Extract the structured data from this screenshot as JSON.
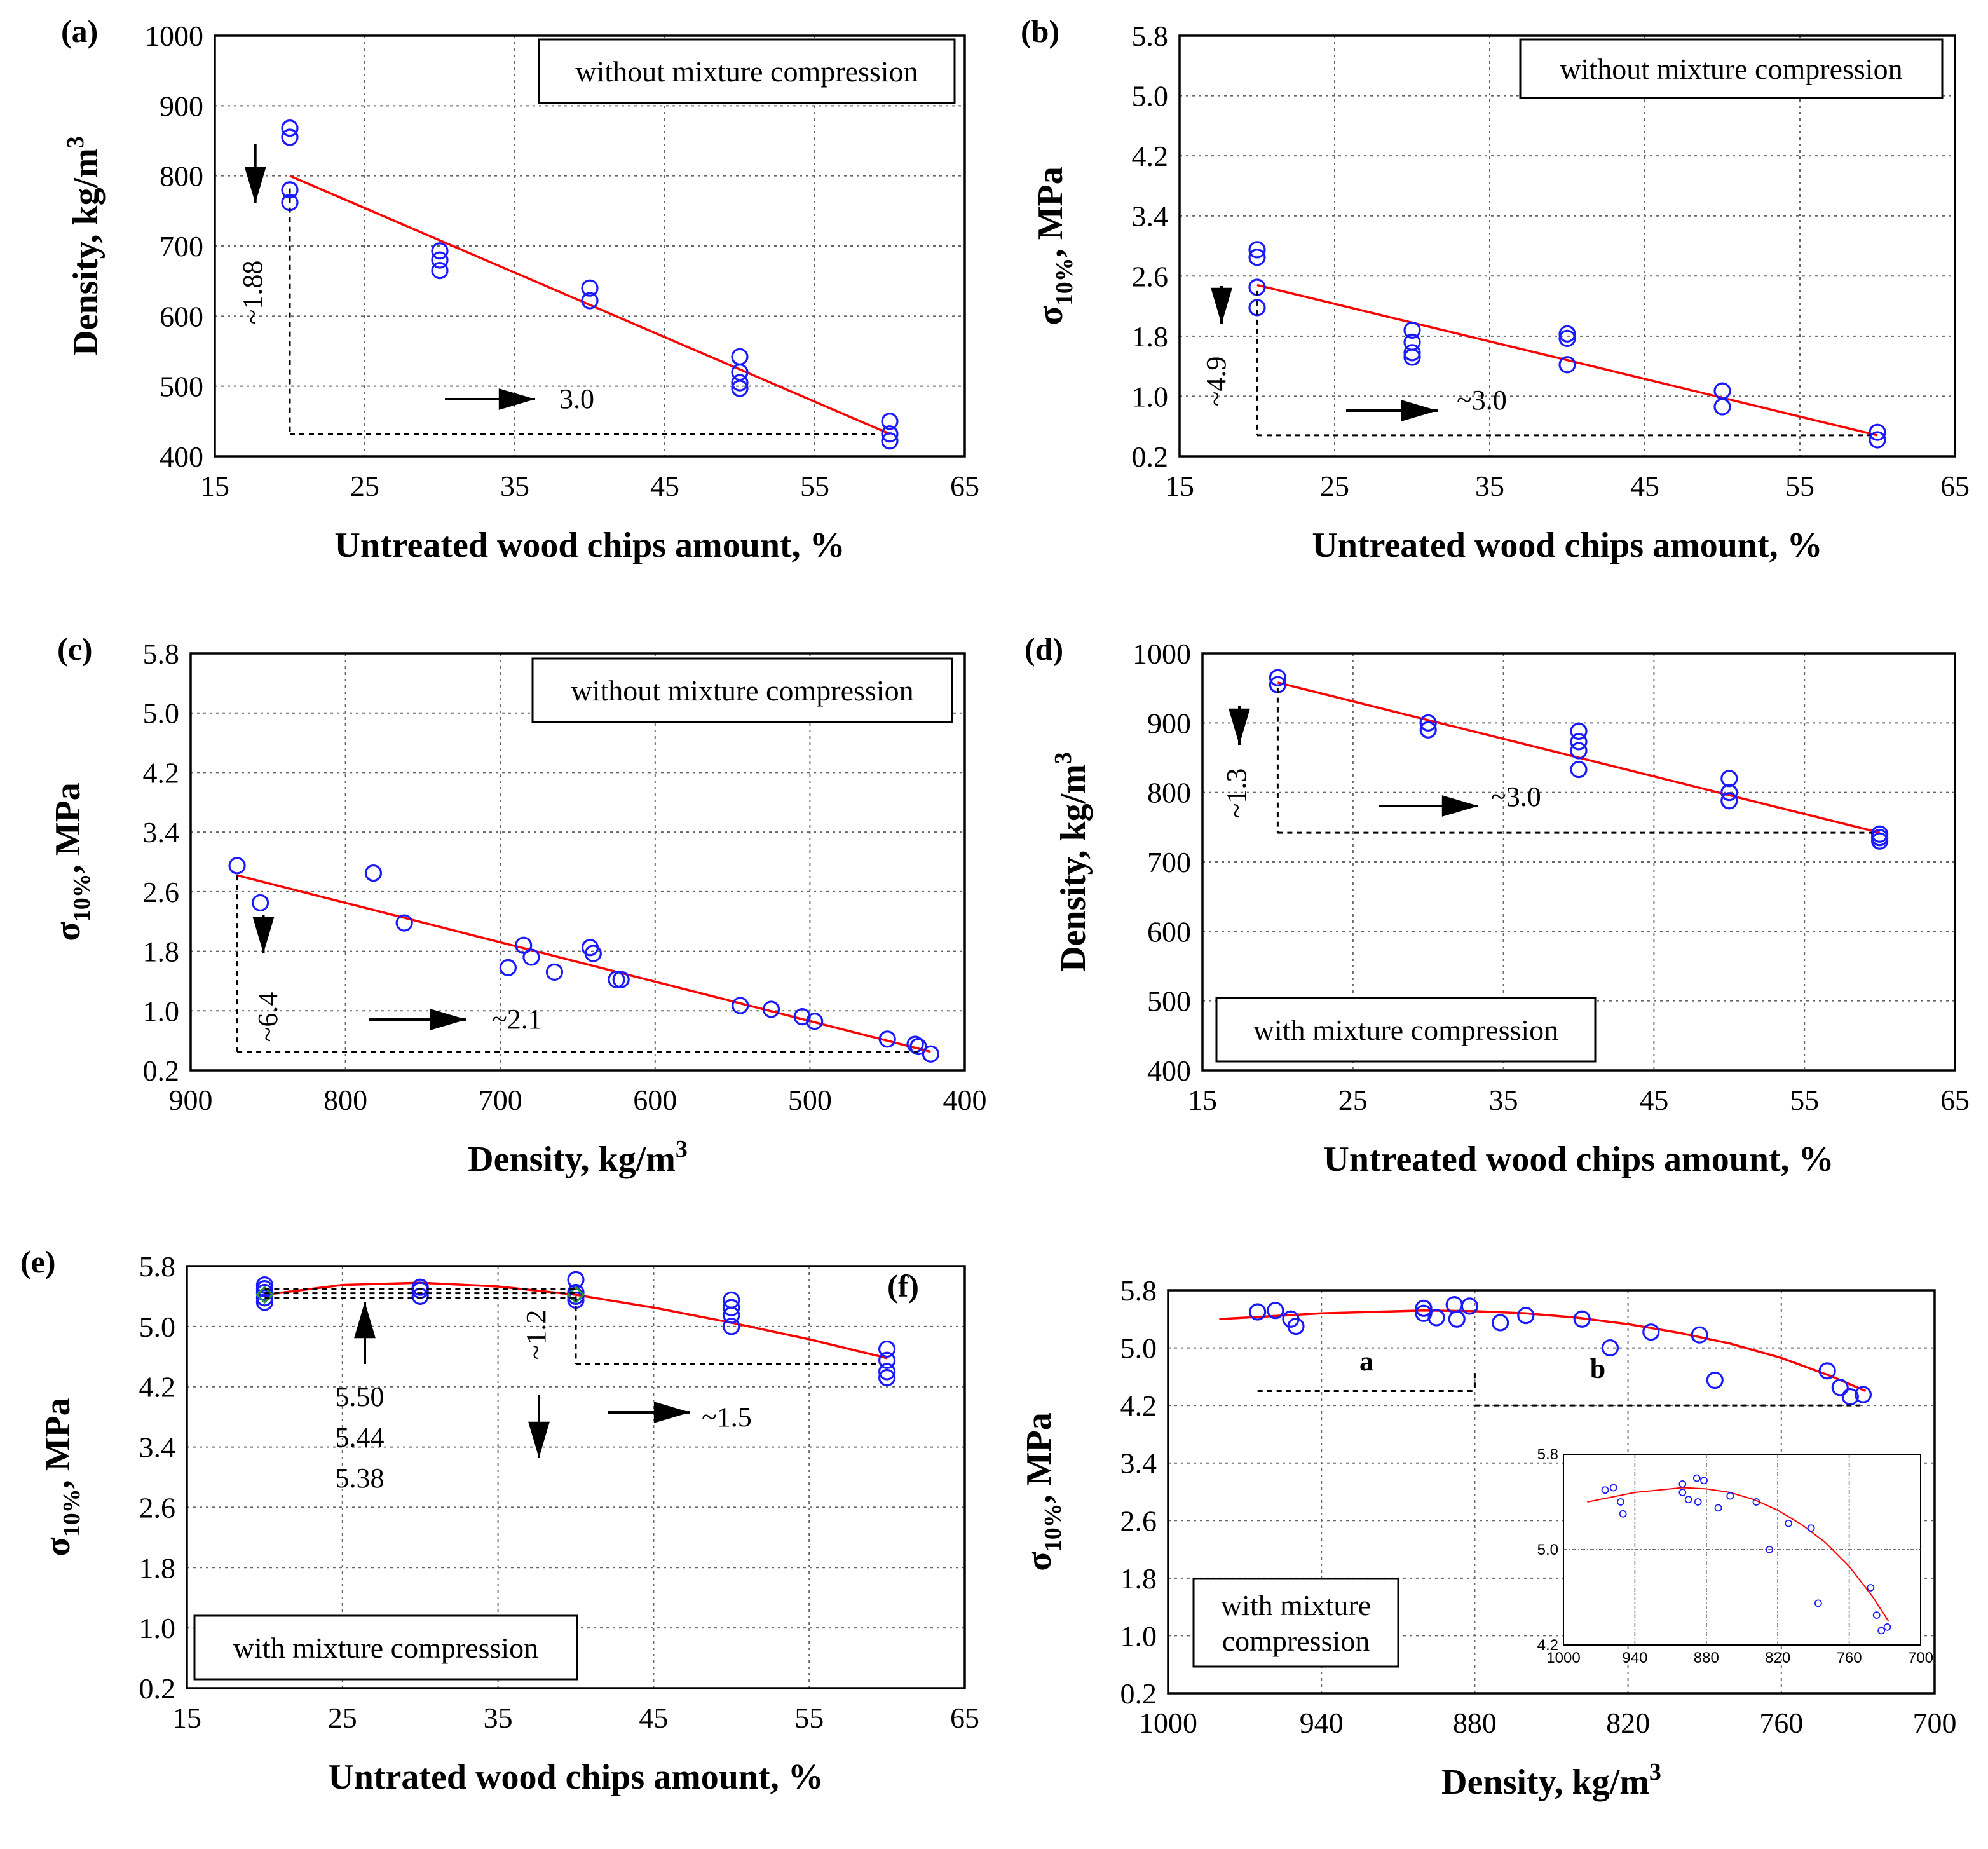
{
  "chart_data": [
    {
      "id": "a",
      "type": "scatter",
      "panel_label": "(a)",
      "xlabel": "Untreated wood chips amount, %",
      "ylabel": "Density, kg/m",
      "ylabel_sup": "3",
      "xlim": [
        15,
        65
      ],
      "ylim": [
        400,
        1000
      ],
      "xticks": [
        15,
        25,
        35,
        45,
        55,
        65
      ],
      "yticks": [
        400,
        500,
        600,
        700,
        800,
        900,
        1000
      ],
      "ytick_labels": [
        "400",
        "500",
        "600",
        "700",
        "800",
        "900",
        "1000"
      ],
      "legend_text": "without mixture compression",
      "series": [
        {
          "name": "measured",
          "x": [
            20,
            20,
            20,
            20,
            30,
            30,
            30,
            40,
            40,
            50,
            50,
            50,
            50,
            60,
            60,
            60
          ],
          "y": [
            868,
            855,
            780,
            762,
            693,
            680,
            665,
            640,
            622,
            542,
            520,
            505,
            497,
            450,
            432,
            422
          ]
        },
        {
          "name": "fit",
          "x": [
            20,
            60
          ],
          "y": [
            800,
            432
          ]
        }
      ],
      "annotations": [
        {
          "text": "~1.88",
          "x": 18.2,
          "y": 655
        },
        {
          "text": "3.0",
          "x": 38.5,
          "y": 490
        }
      ]
    },
    {
      "id": "b",
      "type": "scatter",
      "panel_label": "(b)",
      "xlabel": "Untreated wood chips amount, %",
      "ylabel": "σ",
      "ylabel_sub": "10%",
      "ylabel_rest": ", MPa",
      "xlim": [
        15,
        65
      ],
      "ylim": [
        0.2,
        5.8
      ],
      "xticks": [
        15,
        25,
        35,
        45,
        55,
        65
      ],
      "yticks": [
        0.2,
        1.0,
        1.8,
        2.6,
        3.4,
        4.2,
        5.0,
        5.8
      ],
      "ytick_labels": [
        "0.2",
        "1.0",
        "1.8",
        "2.6",
        "3.4",
        "4.2",
        "5.0",
        "5.8"
      ],
      "legend_text": "without mixture compression",
      "series": [
        {
          "name": "measured",
          "x": [
            20,
            20,
            20,
            20,
            30,
            30,
            30,
            30,
            40,
            40,
            40,
            50,
            50,
            60,
            60
          ],
          "y": [
            2.95,
            2.85,
            2.45,
            2.18,
            1.88,
            1.72,
            1.58,
            1.52,
            1.83,
            1.77,
            1.42,
            1.07,
            0.86,
            0.52,
            0.42
          ]
        },
        {
          "name": "fit",
          "x": [
            20,
            60
          ],
          "y": [
            2.48,
            0.48
          ]
        }
      ],
      "annotations": [
        {
          "text": "~4.9",
          "x": 17.5,
          "y": 1.25
        },
        {
          "text": "~3.0",
          "x": 36.5,
          "y": 1.15
        }
      ]
    },
    {
      "id": "c",
      "type": "scatter",
      "panel_label": "(c)",
      "xlabel": "Density, kg/m",
      "xlabel_sup": "3",
      "ylabel": "σ",
      "ylabel_sub": "10%",
      "ylabel_rest": ", MPa",
      "xlim": [
        900,
        400
      ],
      "ylim": [
        0.2,
        5.8
      ],
      "xticks": [
        900,
        800,
        700,
        600,
        500,
        400
      ],
      "yticks": [
        0.2,
        1.0,
        1.8,
        2.6,
        3.4,
        4.2,
        5.0,
        5.8
      ],
      "ytick_labels": [
        "0.2",
        "1.0",
        "1.8",
        "2.6",
        "3.4",
        "4.2",
        "5.0",
        "5.8"
      ],
      "legend_text": "without mixture compression",
      "series": [
        {
          "name": "measured",
          "x": [
            870,
            855,
            782,
            762,
            695,
            685,
            680,
            665,
            642,
            640,
            625,
            622,
            545,
            525,
            505,
            497,
            450,
            432,
            430,
            422
          ],
          "y": [
            2.95,
            2.45,
            2.85,
            2.18,
            1.58,
            1.88,
            1.72,
            1.52,
            1.85,
            1.77,
            1.42,
            1.42,
            1.07,
            1.02,
            0.92,
            0.86,
            0.62,
            0.55,
            0.52,
            0.42
          ]
        },
        {
          "name": "fit",
          "x": [
            870,
            422
          ],
          "y": [
            2.82,
            0.45
          ]
        }
      ],
      "annotations": [
        {
          "text": "~6.4",
          "x": 858,
          "y": 1.15
        },
        {
          "text": "~2.1",
          "x": 690,
          "y": 0.92
        }
      ]
    },
    {
      "id": "d",
      "type": "scatter",
      "panel_label": "(d)",
      "xlabel": "Untreated wood chips amount, %",
      "ylabel": "Density, kg/m",
      "ylabel_sup": "3",
      "xlim": [
        15,
        65
      ],
      "ylim": [
        400,
        1000
      ],
      "xticks": [
        15,
        25,
        35,
        45,
        55,
        65
      ],
      "yticks": [
        400,
        500,
        600,
        700,
        800,
        900,
        1000
      ],
      "ytick_labels": [
        "400",
        "500",
        "600",
        "700",
        "800",
        "900",
        "1000"
      ],
      "legend_text": "with mixture compression",
      "series": [
        {
          "name": "measured",
          "x": [
            20,
            20,
            30,
            30,
            40,
            40,
            40,
            40,
            50,
            50,
            50,
            60,
            60,
            60
          ],
          "y": [
            965,
            955,
            900,
            890,
            888,
            873,
            860,
            833,
            820,
            800,
            788,
            740,
            735,
            730
          ]
        },
        {
          "name": "fit",
          "x": [
            20,
            60
          ],
          "y": [
            958,
            742
          ]
        }
      ],
      "annotations": [
        {
          "text": "~1.3",
          "x": 17.8,
          "y": 810
        },
        {
          "text": "~3.0",
          "x": 36.3,
          "y": 787
        }
      ]
    },
    {
      "id": "e",
      "type": "scatter",
      "panel_label": "(e)",
      "xlabel": "Untrated wood chips amount, %",
      "ylabel": "σ",
      "ylabel_sub": "10%",
      "ylabel_rest": ", MPa",
      "xlim": [
        15,
        65
      ],
      "ylim": [
        0.2,
        5.8
      ],
      "xticks": [
        15,
        25,
        35,
        45,
        55,
        65
      ],
      "yticks": [
        0.2,
        1.0,
        1.8,
        2.6,
        3.4,
        4.2,
        5.0,
        5.8
      ],
      "ytick_labels": [
        "0.2",
        "1.0",
        "1.8",
        "2.6",
        "3.4",
        "4.2",
        "5.0",
        "5.8"
      ],
      "legend_text": "with mixture compression",
      "series": [
        {
          "name": "measured",
          "x": [
            20,
            20,
            20,
            20,
            20,
            30,
            30,
            30,
            40,
            40,
            40,
            40,
            50,
            50,
            50,
            50,
            60,
            60,
            60,
            60
          ],
          "y": [
            5.55,
            5.5,
            5.45,
            5.38,
            5.32,
            5.52,
            5.48,
            5.4,
            5.62,
            5.45,
            5.4,
            5.35,
            5.35,
            5.25,
            5.15,
            5.0,
            4.7,
            4.55,
            4.4,
            4.32
          ]
        },
        {
          "name": "fit",
          "x": [
            20,
            25,
            30,
            35,
            40,
            45,
            50,
            55,
            60
          ],
          "y": [
            5.42,
            5.55,
            5.58,
            5.53,
            5.42,
            5.25,
            5.05,
            4.83,
            4.58
          ]
        }
      ],
      "value_labels": [
        "5.50",
        "5.44",
        "5.38"
      ],
      "annotations": [
        {
          "text": "~1.2",
          "x": 38.5,
          "y": 4.8
        },
        {
          "text": "~1.5",
          "x": 51,
          "y": 4.0
        }
      ]
    },
    {
      "id": "f",
      "type": "scatter",
      "panel_label": "(f)",
      "xlabel": "Density, kg/m",
      "xlabel_sup": "3",
      "ylabel": "σ",
      "ylabel_sub": "10%",
      "ylabel_rest": ", MPa",
      "xlim": [
        1000,
        700
      ],
      "ylim": [
        0.2,
        5.8
      ],
      "xticks": [
        1000,
        940,
        880,
        820,
        760,
        700
      ],
      "yticks": [
        0.2,
        1.0,
        1.8,
        2.6,
        3.4,
        4.2,
        5.0,
        5.8
      ],
      "ytick_labels": [
        "0.2",
        "1.0",
        "1.8",
        "2.6",
        "3.4",
        "4.2",
        "5.0",
        "5.8"
      ],
      "legend_text": "with mixture compression",
      "region_labels": [
        "a",
        "b"
      ],
      "series": [
        {
          "name": "measured",
          "x": [
            965,
            958,
            952,
            950,
            900,
            900,
            895,
            888,
            887,
            882,
            870,
            860,
            838,
            827,
            811,
            792,
            786,
            742,
            737,
            733,
            728
          ],
          "y": [
            5.5,
            5.52,
            5.4,
            5.3,
            5.48,
            5.55,
            5.42,
            5.6,
            5.4,
            5.58,
            5.35,
            5.45,
            5.4,
            5.0,
            5.22,
            5.18,
            4.55,
            4.68,
            4.45,
            4.32,
            4.35
          ]
        },
        {
          "name": "fit",
          "x": [
            980,
            940,
            900,
            880,
            860,
            840,
            820,
            800,
            780,
            760,
            740,
            727
          ],
          "y": [
            5.4,
            5.48,
            5.52,
            5.51,
            5.48,
            5.42,
            5.33,
            5.21,
            5.06,
            4.86,
            4.6,
            4.4
          ]
        }
      ],
      "inset": {
        "xlim": [
          1000,
          700
        ],
        "ylim": [
          4.2,
          5.8
        ],
        "xticks": [
          1000,
          940,
          880,
          820,
          760,
          700
        ],
        "yticks": [
          4.2,
          5.0,
          5.8
        ],
        "ytick_labels": [
          "4.2",
          "5.0",
          "5.8"
        ]
      }
    }
  ]
}
